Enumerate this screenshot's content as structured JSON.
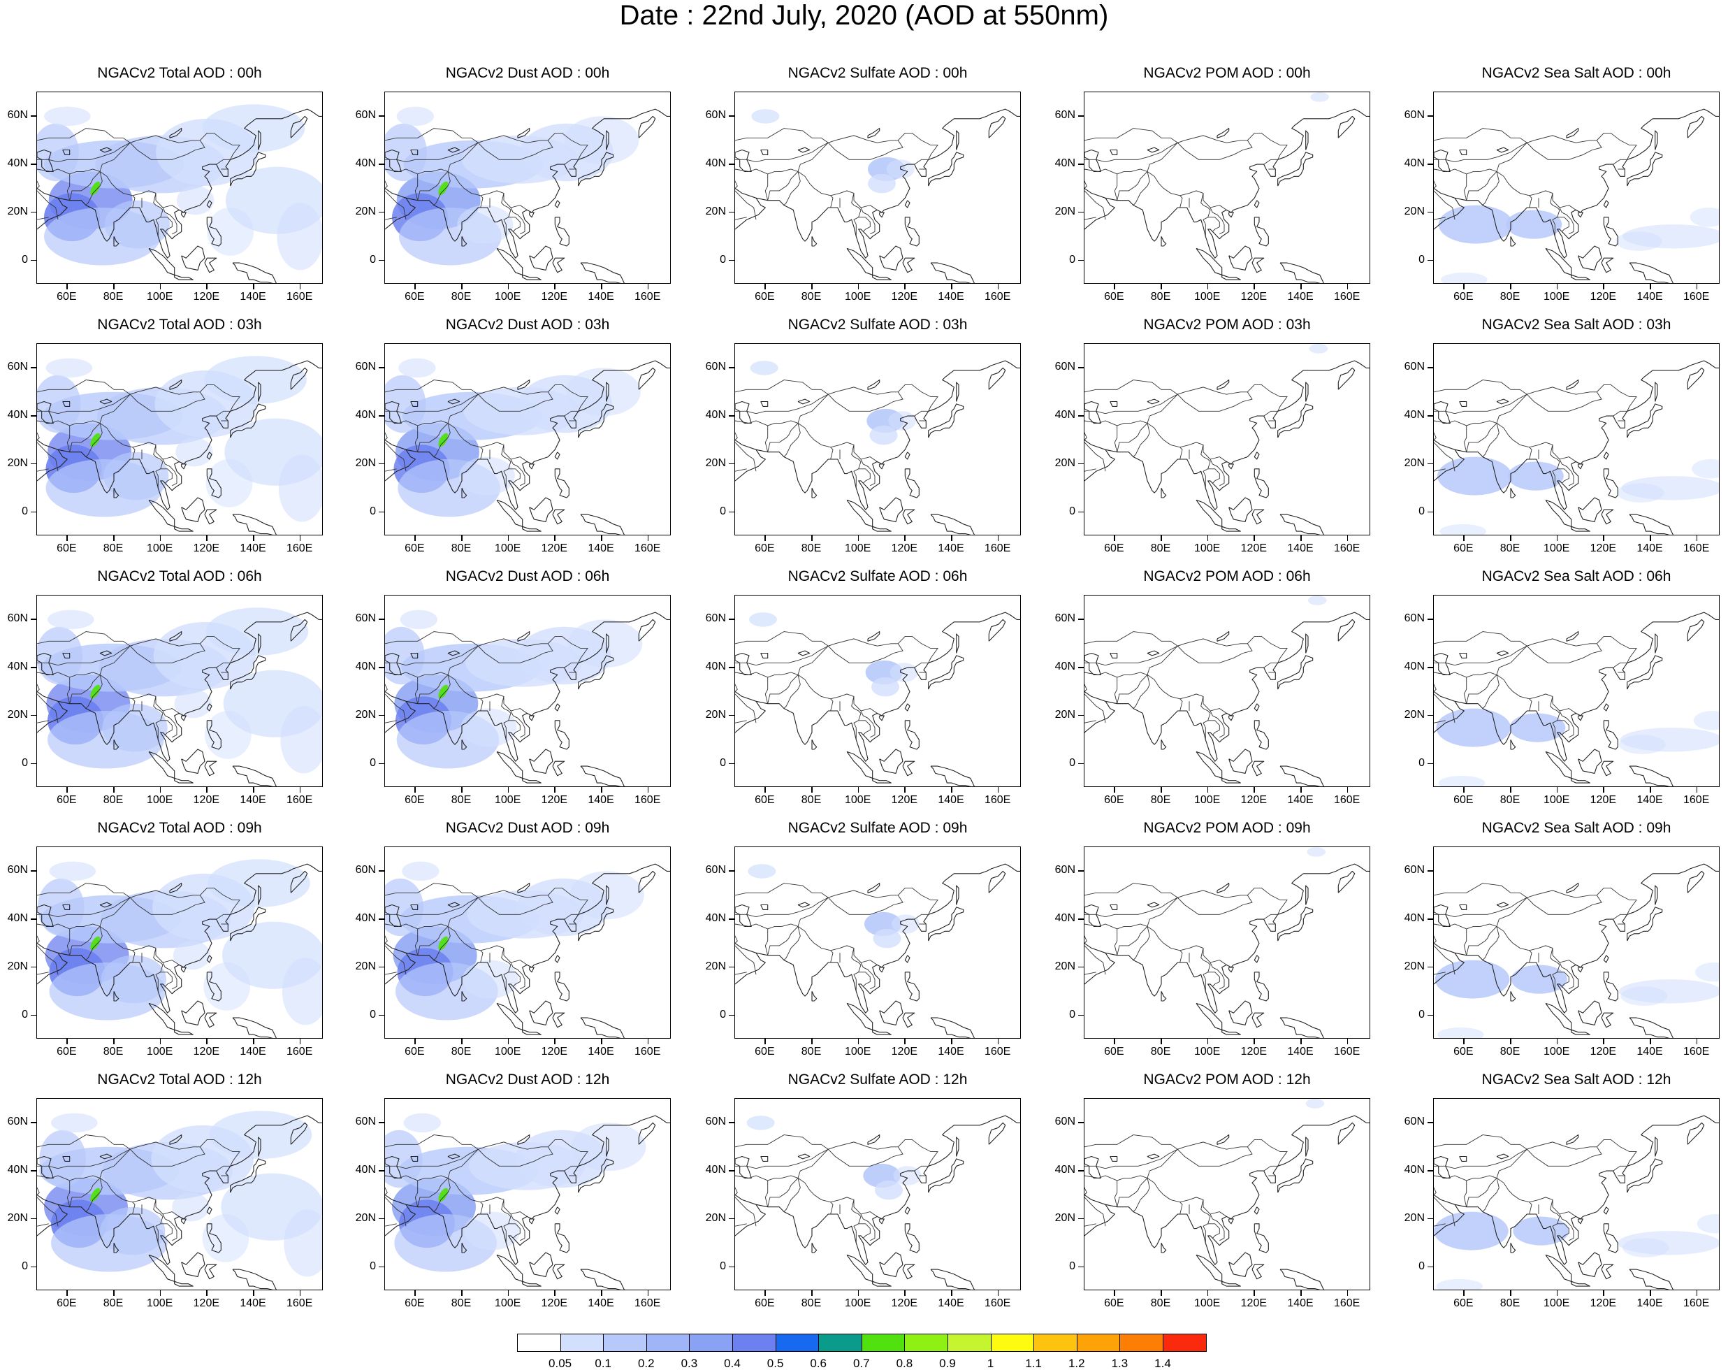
{
  "title": "Date : 22nd July, 2020 (AOD at 550nm)",
  "rows": [
    {
      "titles": [
        "NGACv2 Total AOD : 00h",
        "NGACv2 Dust AOD : 00h",
        "NGACv2 Sulfate AOD : 00h",
        "NGACv2 POM AOD : 00h",
        "NGACv2 Sea Salt AOD : 00h"
      ]
    },
    {
      "titles": [
        "NGACv2 Total AOD : 03h",
        "NGACv2 Dust AOD : 03h",
        "NGACv2 Sulfate AOD : 03h",
        "NGACv2 POM AOD : 03h",
        "NGACv2 Sea Salt AOD : 03h"
      ]
    },
    {
      "titles": [
        "NGACv2 Total AOD : 06h",
        "NGACv2 Dust AOD : 06h",
        "NGACv2 Sulfate AOD : 06h",
        "NGACv2 POM AOD : 06h",
        "NGACv2 Sea Salt AOD : 06h"
      ]
    },
    {
      "titles": [
        "NGACv2 Total AOD : 09h",
        "NGACv2 Dust AOD : 09h",
        "NGACv2 Sulfate AOD : 09h",
        "NGACv2 POM AOD : 09h",
        "NGACv2 Sea Salt  AOD : 09h"
      ]
    },
    {
      "titles": [
        "NGACv2 Total AOD  : 12h",
        "NGACv2 Dust AOD : 12h",
        "NGACv2 Sulfate AOD : 12h",
        "NGACv2 POM  AOD : 12h",
        "NGACv2 Sea Salt  AOD : 12h"
      ]
    }
  ],
  "map": {
    "lon_range": [
      47,
      170
    ],
    "lat_range": [
      -10,
      70
    ],
    "lon_ticks": [
      "60E",
      "80E",
      "100E",
      "120E",
      "140E",
      "160E"
    ],
    "lon_tick_values": [
      60,
      80,
      100,
      120,
      140,
      160
    ],
    "lat_ticks": [
      "60N",
      "40N",
      "20N",
      "0"
    ],
    "lat_tick_values": [
      60,
      40,
      20,
      0
    ]
  },
  "colorbar": {
    "labels": [
      "0.05",
      "0.1",
      "0.2",
      "0.3",
      "0.4",
      "0.5",
      "0.6",
      "0.7",
      "0.8",
      "0.9",
      "1",
      "1.1",
      "1.2",
      "1.3",
      "1.4"
    ],
    "colors": [
      "#ffffff",
      "#d2dffd",
      "#b7c9fb",
      "#9fb5f7",
      "#8aa2f3",
      "#6c80ef",
      "#1769f0",
      "#0b9b8a",
      "#51e10f",
      "#8ef013",
      "#c4f52f",
      "#fdfb10",
      "#fdc30e",
      "#fda308",
      "#fd7e05",
      "#fb2a0c"
    ]
  },
  "chart_data": {
    "type": "heatmap",
    "title": "Date : 22nd July, 2020 (AOD at 550nm)",
    "variables": [
      "Total AOD",
      "Dust AOD",
      "Sulfate AOD",
      "POM AOD",
      "Sea Salt AOD"
    ],
    "times": [
      "00h",
      "03h",
      "06h",
      "09h",
      "12h"
    ],
    "x_axis": "longitude",
    "y_axis": "latitude",
    "xlim": [
      47,
      170
    ],
    "ylim": [
      -10,
      70
    ],
    "levels": [
      0.05,
      0.1,
      0.2,
      0.3,
      0.4,
      0.5,
      0.6,
      0.7,
      0.8,
      0.9,
      1,
      1.1,
      1.2,
      1.3,
      1.4
    ],
    "legend": "bottom"
  }
}
